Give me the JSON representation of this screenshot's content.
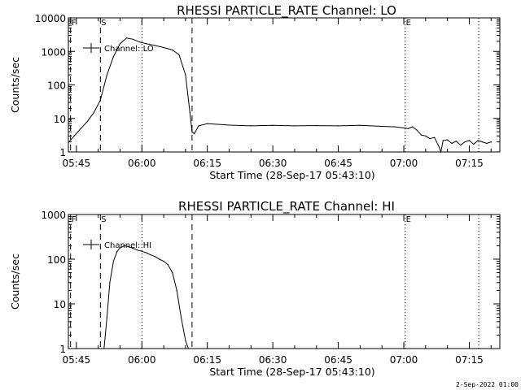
{
  "footer_timestamp": "2-Sep-2022 01:00",
  "chart_data": [
    {
      "type": "line",
      "title": "RHESSI PARTICLE_RATE Channel: LO",
      "xlabel": "Start Time (28-Sep-17 05:43:10)",
      "ylabel": "Counts/sec",
      "yscale": "log",
      "ylim": [
        1,
        10000
      ],
      "xlim": [
        "05:43:10",
        "07:22:00"
      ],
      "x_ticks": [
        "05:45",
        "06:00",
        "06:15",
        "06:30",
        "06:45",
        "07:00",
        "07:15"
      ],
      "y_ticks": [
        "1",
        "10",
        "100",
        "1000",
        "10000"
      ],
      "legend": "top-left",
      "series": [
        {
          "name": "Channel: LO",
          "x": [
            "05:43:20",
            "05:44:30",
            "05:46:00",
            "05:47:30",
            "05:49:00",
            "05:50:30",
            "05:52:00",
            "05:53:30",
            "05:55:00",
            "05:56:30",
            "05:58:00",
            "05:59:30",
            "06:01:00",
            "06:03:00",
            "06:05:00",
            "06:07:00",
            "06:08:30",
            "06:10:00",
            "06:11:00",
            "06:11:30",
            "06:12:00",
            "06:13:00",
            "06:15:00",
            "06:20:00",
            "06:25:00",
            "06:30:00",
            "06:35:00",
            "06:40:00",
            "06:45:00",
            "06:50:00",
            "06:55:00",
            "06:58:00",
            "07:00:00",
            "07:01:00",
            "07:02:00",
            "07:03:00",
            "07:04:00",
            "07:05:00",
            "07:06:00",
            "07:07:00",
            "07:08:00",
            "07:08:30",
            "07:09:00",
            "07:10:00",
            "07:11:00",
            "07:12:00",
            "07:13:00",
            "07:14:00",
            "07:15:00",
            "07:16:00",
            "07:17:00",
            "07:18:00",
            "07:19:00",
            "07:20:00"
          ],
          "y": [
            2,
            3,
            5,
            8,
            15,
            35,
            200,
            700,
            1700,
            2500,
            2300,
            1900,
            1700,
            1500,
            1300,
            1100,
            800,
            200,
            15,
            4,
            3.5,
            6,
            7,
            6.3,
            6,
            6.2,
            6,
            6.1,
            6,
            6.2,
            5.8,
            5.6,
            5.2,
            5,
            5.6,
            4.5,
            3.2,
            3,
            2.5,
            2.7,
            1.5,
            1,
            2.2,
            2.3,
            1.8,
            2.1,
            1.6,
            2,
            2.2,
            1.7,
            2.2,
            2,
            1.8,
            2
          ]
        }
      ],
      "markers": [
        {
          "label": "F",
          "time": "05:43:40",
          "style": "dashed"
        },
        {
          "label": "S",
          "time": "05:50:30",
          "style": "dashed"
        },
        {
          "label": "",
          "time": "06:00:00",
          "style": "dotted"
        },
        {
          "label": "",
          "time": "06:11:30",
          "style": "dashed"
        },
        {
          "label": "E",
          "time": "07:00:20",
          "style": "dotted"
        },
        {
          "label": "",
          "time": "07:17:10",
          "style": "dotted"
        }
      ]
    },
    {
      "type": "line",
      "title": "RHESSI PARTICLE_RATE Channel: HI",
      "xlabel": "Start Time (28-Sep-17 05:43:10)",
      "ylabel": "Counts/sec",
      "yscale": "log",
      "ylim": [
        1,
        1000
      ],
      "xlim": [
        "05:43:10",
        "07:22:00"
      ],
      "x_ticks": [
        "05:45",
        "06:00",
        "06:15",
        "06:30",
        "06:45",
        "07:00",
        "07:15"
      ],
      "y_ticks": [
        "1",
        "10",
        "100",
        "1000"
      ],
      "legend": "top-left",
      "series": [
        {
          "name": "Channel: HI",
          "x": [
            "05:51:20",
            "05:52:00",
            "05:52:40",
            "05:53:30",
            "05:54:20",
            "05:55:00",
            "05:56:00",
            "05:57:00",
            "05:58:00",
            "05:59:00",
            "06:00:00",
            "06:01:00",
            "06:02:00",
            "06:03:00",
            "06:04:00",
            "06:05:00",
            "06:06:00",
            "06:07:00",
            "06:08:00",
            "06:09:00",
            "06:10:00",
            "06:10:40"
          ],
          "y": [
            1,
            5,
            30,
            90,
            150,
            180,
            200,
            190,
            175,
            160,
            150,
            140,
            125,
            115,
            100,
            90,
            75,
            50,
            20,
            5,
            1.5,
            1
          ]
        }
      ],
      "markers": [
        {
          "label": "F",
          "time": "05:43:40",
          "style": "dashed"
        },
        {
          "label": "S",
          "time": "05:50:30",
          "style": "dashed"
        },
        {
          "label": "",
          "time": "06:00:00",
          "style": "dotted"
        },
        {
          "label": "",
          "time": "06:11:30",
          "style": "dashed"
        },
        {
          "label": "E",
          "time": "07:00:20",
          "style": "dotted"
        },
        {
          "label": "",
          "time": "07:17:10",
          "style": "dotted"
        }
      ]
    }
  ]
}
